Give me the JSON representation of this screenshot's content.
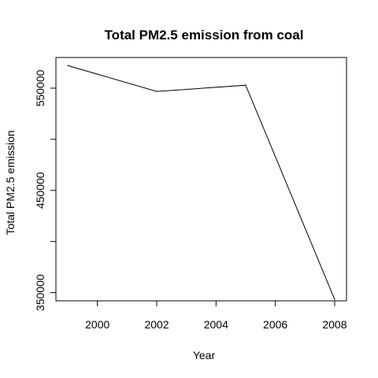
{
  "chart_data": {
    "type": "line",
    "title": "Total PM2.5 emission from coal",
    "xlabel": "Year",
    "ylabel": "Total PM2.5 emission",
    "x": [
      1999,
      2002,
      2005,
      2008
    ],
    "series": [
      {
        "values": [
          572126,
          546789,
          552881,
          343432
        ]
      }
    ],
    "xlim": [
      1998.6,
      2008.4
    ],
    "ylim": [
      342000,
      580000
    ],
    "x_ticks": [
      2000,
      2002,
      2004,
      2006,
      2008
    ],
    "x_tick_labels": [
      "2000",
      "2002",
      "2004",
      "2006",
      "2008"
    ],
    "y_ticks": [
      350000,
      400000,
      450000,
      500000,
      550000
    ],
    "y_tick_labels": [
      "350000",
      "",
      "450000",
      "",
      "550000"
    ],
    "line_color": "#000000",
    "grid": false,
    "legend": "none"
  }
}
